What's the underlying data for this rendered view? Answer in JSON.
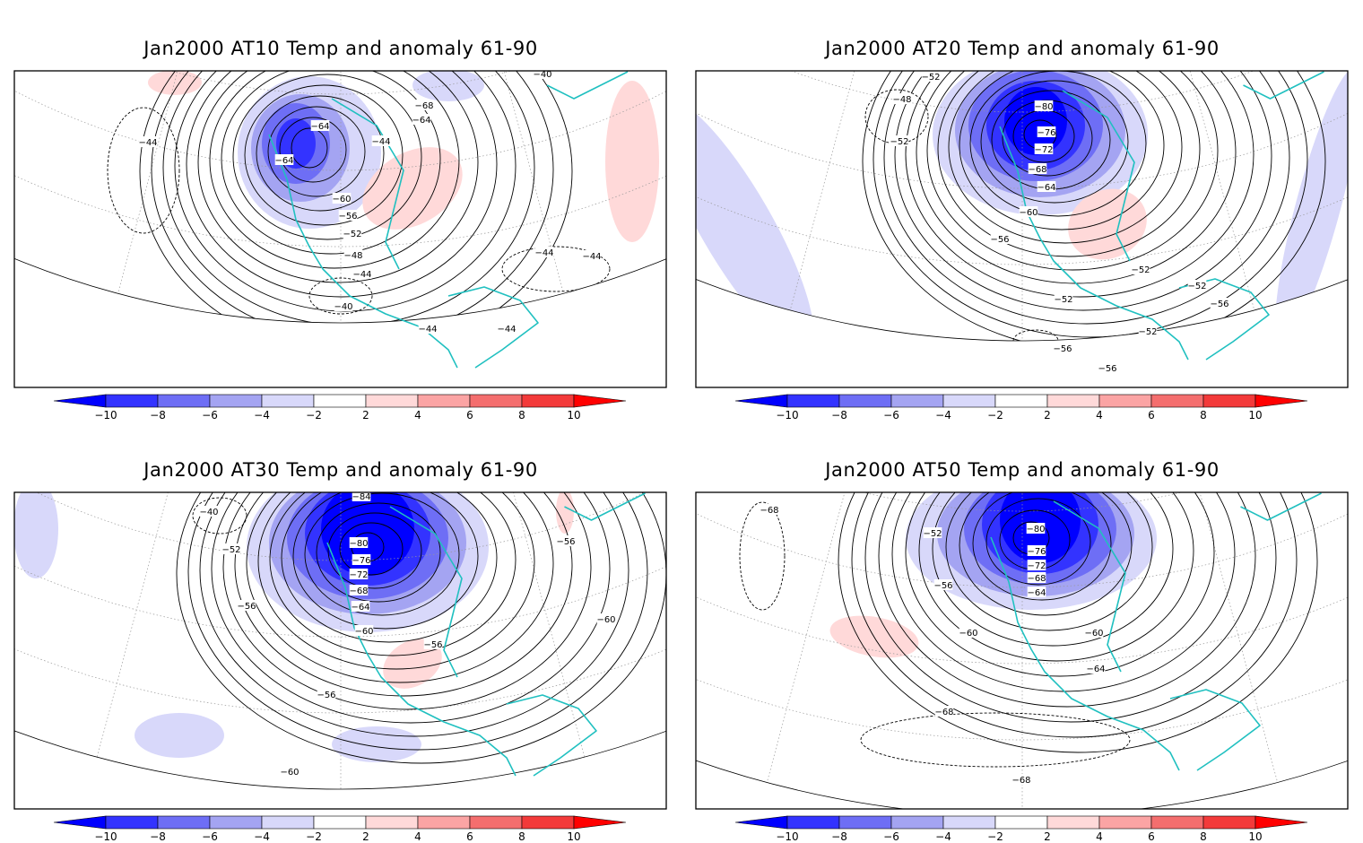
{
  "colors": {
    "neg": [
      "#0000ff",
      "#3333ff",
      "#6e6ef5",
      "#a4a4f2",
      "#d8d8fa"
    ],
    "pos": [
      "#ffd9d9",
      "#fba4a4",
      "#f46e6e",
      "#f33a3a",
      "#ff0000"
    ],
    "coast": "#20c0c0",
    "contour": "#000000",
    "grid": "#999999"
  },
  "colorbar": {
    "ticks": [
      "−10",
      "−8",
      "−6",
      "−4",
      "−2",
      "2",
      "4",
      "6",
      "8",
      "10"
    ]
  },
  "panels": [
    {
      "id": "at10",
      "title": "Jan2000 AT10 Temp and anomaly 61-90",
      "contour_labels": [
        "-40",
        "-44",
        "-64",
        "-64",
        "-68",
        "-64",
        "-44",
        "-60",
        "-56",
        "-52",
        "-48",
        "-44",
        "-40",
        "-44",
        "-44",
        "-44",
        "-44"
      ]
    },
    {
      "id": "at20",
      "title": "Jan2000 AT20 Temp and anomaly 61-90",
      "contour_labels": [
        "-52",
        "-48",
        "-52",
        "-80",
        "-76",
        "-72",
        "-68",
        "-64",
        "-60",
        "-56",
        "-52",
        "-52",
        "-56",
        "-56",
        "-52",
        "-52",
        "-56"
      ]
    },
    {
      "id": "at30",
      "title": "Jan2000 AT30 Temp and anomaly 61-90",
      "contour_labels": [
        "-84",
        "-40",
        "-52",
        "-80",
        "-76",
        "-72",
        "-68",
        "-64",
        "-56",
        "-60",
        "-56",
        "-56",
        "-60",
        "-60",
        "-56"
      ]
    },
    {
      "id": "at50",
      "title": "Jan2000 AT50 Temp and anomaly 61-90",
      "contour_labels": [
        "-68",
        "-52",
        "-56",
        "-80",
        "-76",
        "-72",
        "-68",
        "-64",
        "-60",
        "-60",
        "-64",
        "-68",
        "-68"
      ]
    }
  ]
}
